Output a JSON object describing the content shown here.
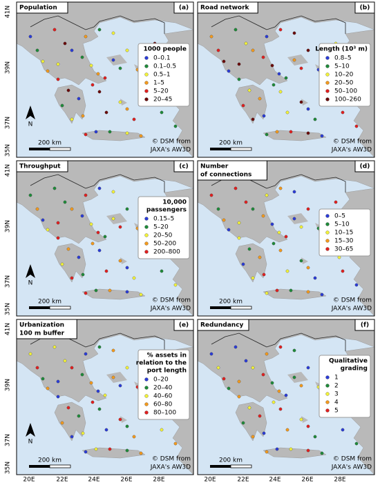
{
  "axes": {
    "lat_labels": [
      "41N",
      "39N",
      "37N",
      "35N"
    ],
    "lon_labels": [
      "20E",
      "22E",
      "24E",
      "26E",
      "28E"
    ]
  },
  "panels": [
    {
      "title": [
        "Population"
      ],
      "letter": "(a)",
      "legend_title": [
        "1000 people"
      ],
      "legend_items": [
        {
          "label": "0–0.1",
          "color": "#2b3cd6"
        },
        {
          "label": "0.1–0.5",
          "color": "#1f8a3a"
        },
        {
          "label": "0.5–1",
          "color": "#f2f23a"
        },
        {
          "label": "1–5",
          "color": "#f39a1e"
        },
        {
          "label": "5–20",
          "color": "#e02020"
        },
        {
          "label": "20–45",
          "color": "#6a0a0a"
        }
      ],
      "north_label": "N",
      "scale_bar": "200 km",
      "credit": [
        "© DSM from",
        "JAXA's AW3D"
      ]
    },
    {
      "title": [
        "Road network"
      ],
      "letter": "(b)",
      "legend_title": [
        "Length (10³ m)"
      ],
      "legend_items": [
        {
          "label": "0.8–5",
          "color": "#2b3cd6"
        },
        {
          "label": "5–10",
          "color": "#1f8a3a"
        },
        {
          "label": "10–20",
          "color": "#f2f23a"
        },
        {
          "label": "20–50",
          "color": "#f39a1e"
        },
        {
          "label": "50–100",
          "color": "#e02020"
        },
        {
          "label": "100–260",
          "color": "#6a0a0a"
        }
      ],
      "scale_bar": "200 km",
      "credit": [
        "© DSM from",
        "JAXA's AW3D"
      ]
    },
    {
      "title": [
        "Throughput"
      ],
      "letter": "(c)",
      "legend_title": [
        "10,000",
        "passengers"
      ],
      "legend_items": [
        {
          "label": "0.15–5",
          "color": "#2b3cd6"
        },
        {
          "label": "5–20",
          "color": "#1f8a3a"
        },
        {
          "label": "20–50",
          "color": "#f2f23a"
        },
        {
          "label": "50–200",
          "color": "#f39a1e"
        },
        {
          "label": "200–800",
          "color": "#e02020"
        }
      ],
      "north_label": "N",
      "scale_bar": "200 km",
      "credit": [
        "© DSM from",
        "JAXA's AW3D"
      ]
    },
    {
      "title": [
        "Number",
        "of connections"
      ],
      "letter": "(d)",
      "legend_title": [],
      "legend_items": [
        {
          "label": "0–5",
          "color": "#2b3cd6"
        },
        {
          "label": "5–10",
          "color": "#1f8a3a"
        },
        {
          "label": "10–15",
          "color": "#f2f23a"
        },
        {
          "label": "15–30",
          "color": "#f39a1e"
        },
        {
          "label": "30–65",
          "color": "#e02020"
        }
      ],
      "scale_bar": "200 km",
      "credit": [
        "© DSM from",
        "JAXA's AW3D"
      ]
    },
    {
      "title": [
        "Urbanization",
        "100 m buffer"
      ],
      "letter": "(e)",
      "legend_title": [
        "% assets in",
        "relation to the",
        "port length"
      ],
      "legend_items": [
        {
          "label": "0–20",
          "color": "#2b3cd6"
        },
        {
          "label": "20–40",
          "color": "#1f8a3a"
        },
        {
          "label": "40–60",
          "color": "#f2f23a"
        },
        {
          "label": "60–80",
          "color": "#f39a1e"
        },
        {
          "label": "80–100",
          "color": "#e02020"
        }
      ],
      "north_label": "N",
      "scale_bar": "200 km",
      "credit": [
        "© DSM from",
        "JAXA's AW3D"
      ]
    },
    {
      "title": [
        "Redundancy"
      ],
      "letter": "(f)",
      "legend_title": [
        "Qualitative",
        "grading"
      ],
      "legend_items": [
        {
          "label": "1",
          "color": "#2b3cd6"
        },
        {
          "label": "2",
          "color": "#1f8a3a"
        },
        {
          "label": "3",
          "color": "#f2f23a"
        },
        {
          "label": "4",
          "color": "#f39a1e"
        },
        {
          "label": "5",
          "color": "#e02020"
        }
      ],
      "scale_bar": "200 km",
      "credit": [
        "© DSM from",
        "JAXA's AW3D"
      ]
    }
  ]
}
